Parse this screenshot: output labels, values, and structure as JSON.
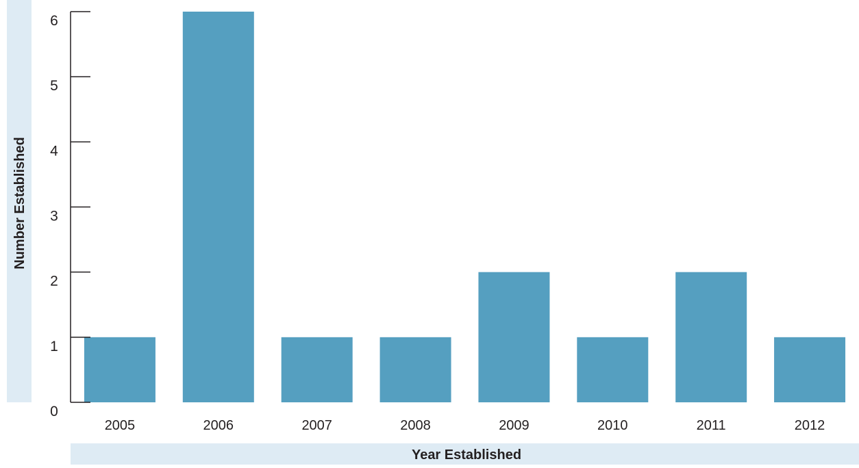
{
  "chart_data": {
    "type": "bar",
    "title": "",
    "xlabel": "Year Established",
    "ylabel": "Number Established",
    "categories": [
      "2005",
      "2006",
      "2007",
      "2008",
      "2009",
      "2010",
      "2011",
      "2012"
    ],
    "values": [
      1,
      6,
      1,
      1,
      2,
      1,
      2,
      1
    ],
    "ylim": [
      0,
      6
    ],
    "yticks": [
      0,
      1,
      2,
      3,
      4,
      5,
      6
    ],
    "grid": false,
    "colors": {
      "bar": "#559fc0",
      "axis_label_band": "#deebf4",
      "axis": "#231f20",
      "text": "#231f20"
    }
  }
}
